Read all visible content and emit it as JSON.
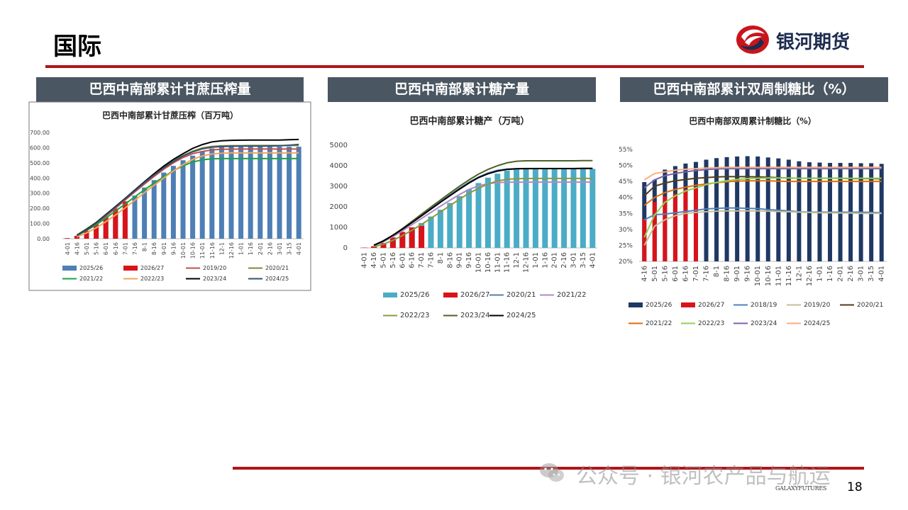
{
  "page": {
    "title": "国际",
    "logo_text": "银河期货",
    "footer_brand": "GALAXYFUTURES",
    "page_number": "18",
    "watermark": "公众号 · 银河农产品与航运",
    "headers": [
      "巴西中南部累计甘蔗压榨量",
      "巴西中南部累计糖产量",
      "巴西中南部累计双周制糖比（%）"
    ],
    "colors": {
      "accent_red": "#b0151a",
      "header_bg": "#4a5661",
      "logo_blue": "#1d2b4f"
    }
  },
  "chart_data": [
    {
      "type": "bar",
      "title": "巴西中南部累计甘蔗压榨（百万吨）",
      "categories": [
        "4-01",
        "4-16",
        "5-01",
        "5-16",
        "6-01",
        "6-16",
        "7-01",
        "7-16",
        "8-1",
        "8-16",
        "9-01",
        "9-16",
        "10-01",
        "10-16",
        "11-01",
        "11-16",
        "12-1",
        "12-16",
        "1-01",
        "1-16",
        "2-01",
        "2-16",
        "3-01",
        "3-15",
        "4-01"
      ],
      "yticks": [
        "700.00",
        "600.00",
        "500.00",
        "400.00",
        "300.00",
        "200.00",
        "100.00",
        "0.00"
      ],
      "ylim": [
        0,
        700
      ],
      "bar_series": [
        {
          "name": "2025/26",
          "color": "#4e7fb5",
          "values": [
            4,
            17,
            49,
            89,
            134,
            181,
            232,
            284,
            337,
            386,
            436,
            480,
            517,
            547,
            577,
            595,
            603,
            605,
            606,
            606,
            606,
            606,
            606,
            606,
            606
          ]
        },
        {
          "name": "2026/27",
          "color": "#d8141b",
          "values": [
            3,
            19,
            52,
            96,
            146,
            199,
            246
          ]
        }
      ],
      "line_series": [
        {
          "name": "2019/20",
          "color": "#c0504d",
          "values": [
            null,
            22,
            55,
            98,
            148,
            200,
            255,
            308,
            360,
            410,
            458,
            500,
            535,
            560,
            575,
            585,
            589,
            590,
            591,
            591,
            591,
            591,
            591,
            591,
            591
          ]
        },
        {
          "name": "2020/21",
          "color": "#7d8a3a",
          "values": [
            null,
            25,
            65,
            108,
            160,
            212,
            264,
            318,
            370,
            420,
            468,
            512,
            548,
            577,
            598,
            608,
            612,
            613,
            613,
            614,
            614,
            614,
            614,
            614,
            614
          ]
        },
        {
          "name": "2021/22",
          "color": "#1fa043",
          "values": [
            null,
            20,
            54,
            92,
            136,
            182,
            228,
            276,
            322,
            366,
            408,
            448,
            480,
            505,
            520,
            526,
            528,
            528,
            528,
            528,
            528,
            528,
            528,
            528,
            528
          ]
        },
        {
          "name": "2022/23",
          "color": "#f2a65a",
          "values": [
            null,
            12,
            38,
            72,
            112,
            156,
            203,
            253,
            303,
            352,
            400,
            446,
            488,
            522,
            545,
            558,
            563,
            565,
            565,
            565,
            565,
            565,
            565,
            565,
            565
          ]
        },
        {
          "name": "2023/24",
          "color": "#000000",
          "values": [
            null,
            21,
            60,
            105,
            158,
            212,
            265,
            320,
            375,
            428,
            478,
            522,
            560,
            595,
            620,
            638,
            645,
            648,
            649,
            650,
            650,
            650,
            650,
            652,
            654
          ]
        },
        {
          "name": "2024/25",
          "color": "#34506f",
          "values": [
            null,
            20,
            57,
            102,
            155,
            208,
            262,
            316,
            370,
            420,
            467,
            508,
            545,
            572,
            592,
            603,
            607,
            609,
            610,
            610,
            610,
            611,
            612,
            616,
            621
          ]
        }
      ],
      "legend_order": [
        "2025/26",
        "2026/27",
        "2019/20",
        "2020/21",
        "2021/22",
        "2022/23",
        "2023/24",
        "2024/25"
      ]
    },
    {
      "type": "bar",
      "title": "巴西中南部累计糖产（万吨）",
      "categories": [
        "4-01",
        "4-16",
        "5-01",
        "5-16",
        "6-01",
        "6-16",
        "7-01",
        "7-16",
        "8-1",
        "8-16",
        "9-01",
        "9-16",
        "10-01",
        "10-16",
        "11-01",
        "11-16",
        "12-1",
        "12-16",
        "1-01",
        "1-16",
        "2-01",
        "2-16",
        "3-01",
        "3-15",
        "4-01"
      ],
      "yticks": [
        "5000",
        "4000",
        "3000",
        "2000",
        "1000",
        "0"
      ],
      "ylim": [
        0,
        5000
      ],
      "bar_series": [
        {
          "name": "2025/26",
          "color": "#4bacc6",
          "values": [
            15,
            68,
            191,
            384,
            625,
            910,
            1213,
            1530,
            1860,
            2190,
            2521,
            2850,
            3160,
            3420,
            3615,
            3760,
            3820,
            3840,
            3845,
            3846,
            3846,
            3846,
            3846,
            3848,
            3850
          ]
        },
        {
          "name": "2026/27",
          "color": "#d8141b",
          "values": [
            14,
            80,
            242,
            510,
            780,
            1000,
            1070
          ]
        }
      ],
      "line_series": [
        {
          "name": "2020/21",
          "color": "#4f7fb0",
          "values": [
            null,
            130,
            350,
            620,
            920,
            1250,
            1580,
            1920,
            2250,
            2580,
            2900,
            3200,
            3450,
            3650,
            3780,
            3840,
            3860,
            3865,
            3866,
            3866,
            3866,
            3866,
            3866,
            3868,
            3870
          ]
        },
        {
          "name": "2021/22",
          "color": "#b088c9",
          "values": [
            null,
            110,
            300,
            550,
            830,
            1130,
            1430,
            1730,
            2030,
            2320,
            2600,
            2850,
            3020,
            3130,
            3180,
            3200,
            3205,
            3205,
            3205,
            3205,
            3205,
            3205,
            3205,
            3205,
            3205
          ]
        },
        {
          "name": "2022/23",
          "color": "#8a9a3c",
          "values": [
            null,
            60,
            180,
            370,
            600,
            860,
            1140,
            1440,
            1750,
            2060,
            2370,
            2660,
            2900,
            3110,
            3260,
            3340,
            3370,
            3380,
            3382,
            3382,
            3382,
            3382,
            3382,
            3382,
            3382
          ]
        },
        {
          "name": "2023/24",
          "color": "#4f6228",
          "values": [
            null,
            120,
            330,
            620,
            940,
            1290,
            1640,
            1990,
            2330,
            2670,
            3000,
            3310,
            3590,
            3820,
            4000,
            4140,
            4220,
            4240,
            4240,
            4240,
            4240,
            4240,
            4240,
            4250,
            4250
          ]
        },
        {
          "name": "2024/25",
          "color": "#000000",
          "values": [
            null,
            130,
            340,
            610,
            910,
            1230,
            1560,
            1890,
            2220,
            2540,
            2860,
            3160,
            3420,
            3610,
            3740,
            3820,
            3850,
            3860,
            3862,
            3862,
            3862,
            3862,
            3862,
            3868,
            3870
          ]
        }
      ],
      "legend_order": [
        "2025/26",
        "2026/27",
        "2020/21",
        "2021/22",
        "2022/23",
        "2023/24",
        "2024/25"
      ]
    },
    {
      "type": "bar",
      "title": "巴西中南部双周累计制糖比（%）",
      "categories": [
        "4-16",
        "5-01",
        "5-16",
        "6-01",
        "6-16",
        "7-01",
        "7-16",
        "8-1",
        "8-16",
        "9-01",
        "9-16",
        "10-01",
        "10-16",
        "11-01",
        "11-16",
        "12-1",
        "12-16",
        "1-01",
        "1-16",
        "2-01",
        "2-16",
        "3-01",
        "3-15",
        "4-01"
      ],
      "yticks": [
        "55%",
        "50%",
        "45%",
        "40%",
        "35%",
        "30%",
        "25%",
        "20%"
      ],
      "ylim": [
        20,
        55
      ],
      "bar_series": [
        {
          "name": "2025/26",
          "color": "#1f3864",
          "values": [
            44.8,
            45.5,
            48.7,
            49.8,
            50.6,
            51.1,
            51.8,
            52.3,
            52.6,
            52.8,
            52.9,
            52.8,
            52.5,
            52.2,
            51.8,
            51.3,
            51.0,
            50.9,
            50.8,
            50.8,
            50.8,
            50.7,
            50.7,
            50.5
          ]
        },
        {
          "name": "2026/27",
          "color": "#d8141b",
          "values": [
            33.3,
            38.6,
            40.3,
            41.2,
            42.6,
            43.2
          ]
        }
      ],
      "line_series": [
        {
          "name": "2018/19",
          "color": "#4f81bd",
          "values": [
            33.0,
            34.6,
            34.8,
            35.2,
            35.6,
            36.0,
            36.4,
            36.6,
            36.7,
            36.7,
            36.6,
            36.5,
            36.2,
            36.0,
            35.8,
            35.5,
            35.4,
            35.4,
            35.4,
            35.4,
            35.4,
            35.4,
            35.3,
            35.2
          ]
        },
        {
          "name": "2019/20",
          "color": "#c4bd97",
          "values": [
            25.0,
            31.0,
            33.0,
            34.3,
            35.0,
            35.3,
            35.5,
            35.7,
            35.8,
            35.8,
            35.8,
            35.8,
            35.7,
            35.6,
            35.5,
            35.4,
            35.3,
            35.2,
            35.2,
            35.1,
            35.1,
            35.0,
            35.0,
            35.0
          ]
        },
        {
          "name": "2020/21",
          "color": "#4f3d1a",
          "values": [
            40.5,
            43.5,
            44.5,
            45.2,
            45.6,
            46.0,
            46.2,
            46.4,
            46.5,
            46.5,
            46.5,
            46.4,
            46.3,
            46.2,
            46.1,
            46.0,
            46.0,
            46.0,
            46.0,
            46.0,
            45.9,
            45.9,
            45.9,
            45.8
          ]
        },
        {
          "name": "2021/22",
          "color": "#e26b0a",
          "values": [
            37.5,
            40.0,
            41.5,
            42.5,
            43.2,
            43.8,
            44.2,
            44.6,
            44.9,
            45.1,
            45.2,
            45.2,
            45.2,
            45.1,
            45.0,
            45.0,
            45.0,
            45.0,
            45.0,
            45.0,
            45.0,
            45.0,
            45.0,
            45.0
          ]
        },
        {
          "name": "2022/23",
          "color": "#92d050",
          "values": [
            27.5,
            34.5,
            38.5,
            40.5,
            42.0,
            43.0,
            44.0,
            44.7,
            45.2,
            45.6,
            45.9,
            46.0,
            46.1,
            46.1,
            46.1,
            46.0,
            46.0,
            46.0,
            46.0,
            46.0,
            46.0,
            46.0,
            46.0,
            46.0
          ]
        },
        {
          "name": "2023/24",
          "color": "#7b63a8",
          "values": [
            43.0,
            45.5,
            46.8,
            47.5,
            48.0,
            48.4,
            48.7,
            48.9,
            49.0,
            49.0,
            49.0,
            49.0,
            49.0,
            49.0,
            49.0,
            49.0,
            49.0,
            49.0,
            49.0,
            49.0,
            49.0,
            49.0,
            49.0,
            49.0
          ]
        },
        {
          "name": "2024/25",
          "color": "#f4b183",
          "values": [
            45.5,
            47.5,
            48.0,
            48.5,
            48.8,
            49.0,
            49.2,
            49.3,
            49.4,
            49.4,
            49.4,
            49.4,
            49.4,
            49.4,
            49.4,
            49.4,
            49.4,
            49.4,
            49.4,
            49.4,
            49.4,
            49.4,
            49.4,
            49.4
          ]
        }
      ],
      "legend_order": [
        "2025/26",
        "2026/27",
        "2018/19",
        "2019/20",
        "2020/21",
        "2021/22",
        "2022/23",
        "2023/24",
        "2024/25"
      ]
    }
  ]
}
